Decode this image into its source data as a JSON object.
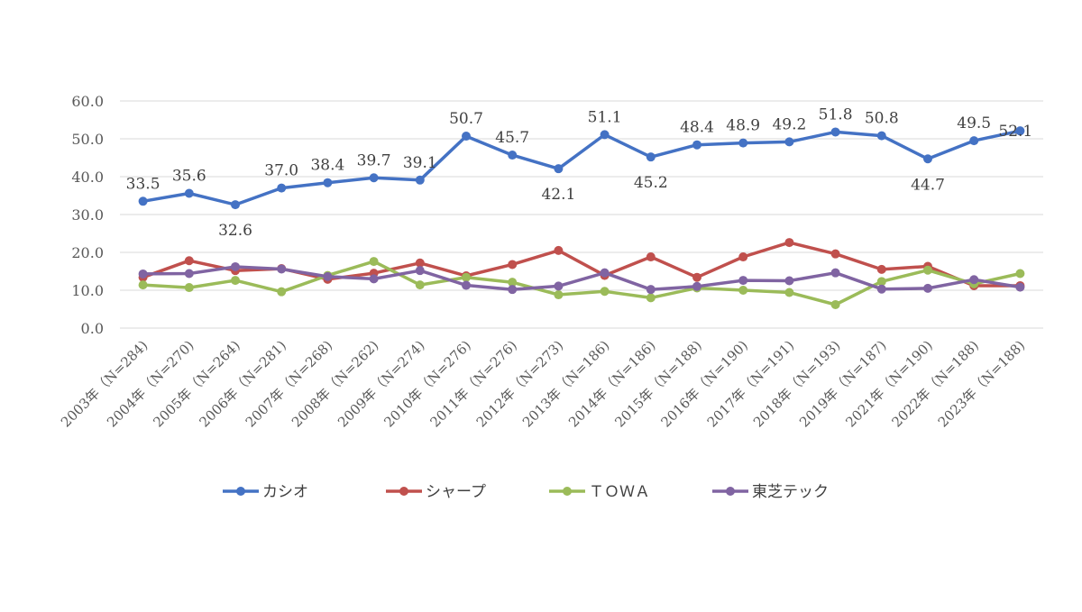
{
  "chart_data": {
    "type": "line",
    "title": "",
    "xlabel": "",
    "ylabel": "",
    "ylim": [
      0,
      60
    ],
    "yticks": [
      "0.0",
      "10.0",
      "20.0",
      "30.0",
      "40.0",
      "50.0",
      "60.0"
    ],
    "grid": "horizontal",
    "legend_position": "bottom",
    "categories": [
      "2003年（N=284)",
      "2004年（N=270)",
      "2005年（N=264)",
      "2006年（N=281)",
      "2007年（N=268)",
      "2008年（N=262)",
      "2009年（N=274)",
      "2010年（N=276)",
      "2011年（N=276)",
      "2012年（N=273)",
      "2013年（N=186)",
      "2014年（N=186)",
      "2015年（N=188)",
      "2016年（N=190)",
      "2017年（N=191)",
      "2018年（N=193)",
      "2019年（N=187)",
      "2021年（N=190)",
      "2022年（N=188)",
      "2023年（N=188)"
    ],
    "series": [
      {
        "name": "カシオ",
        "color": "#4472C4",
        "values": [
          33.5,
          35.6,
          32.6,
          37.0,
          38.4,
          39.7,
          39.1,
          50.7,
          45.7,
          42.1,
          51.1,
          45.2,
          48.4,
          48.9,
          49.2,
          51.8,
          50.8,
          44.7,
          49.5,
          52.1
        ],
        "labels": [
          "33.5",
          "35.6",
          "32.6",
          "37.0",
          "38.4",
          "39.7",
          "39.1",
          "50.7",
          "45.7",
          "42.1",
          "51.1",
          "45.2",
          "48.4",
          "48.9",
          "49.2",
          "51.8",
          "50.8",
          "44.7",
          "49.5",
          "52.1"
        ]
      },
      {
        "name": "シャープ",
        "color": "#C0504D",
        "values": [
          13.4,
          17.8,
          15.2,
          15.7,
          12.9,
          14.5,
          17.2,
          13.8,
          16.8,
          20.5,
          13.9,
          18.8,
          13.4,
          18.8,
          22.6,
          19.6,
          15.5,
          16.3,
          11.2,
          11.2
        ]
      },
      {
        "name": "ＴＯＷＡ",
        "color": "#9BBB59",
        "values": [
          11.4,
          10.7,
          12.6,
          9.6,
          13.9,
          17.6,
          11.4,
          13.4,
          12.1,
          8.8,
          9.7,
          8.0,
          10.6,
          10.0,
          9.4,
          6.2,
          12.3,
          15.3,
          11.7,
          14.4
        ]
      },
      {
        "name": "東芝テック",
        "color": "#8064A2",
        "values": [
          14.3,
          14.4,
          16.2,
          15.6,
          13.6,
          13.0,
          15.2,
          11.3,
          10.2,
          11.1,
          14.6,
          10.2,
          11.0,
          12.6,
          12.5,
          14.6,
          10.3,
          10.5,
          12.8,
          10.8
        ]
      }
    ]
  }
}
